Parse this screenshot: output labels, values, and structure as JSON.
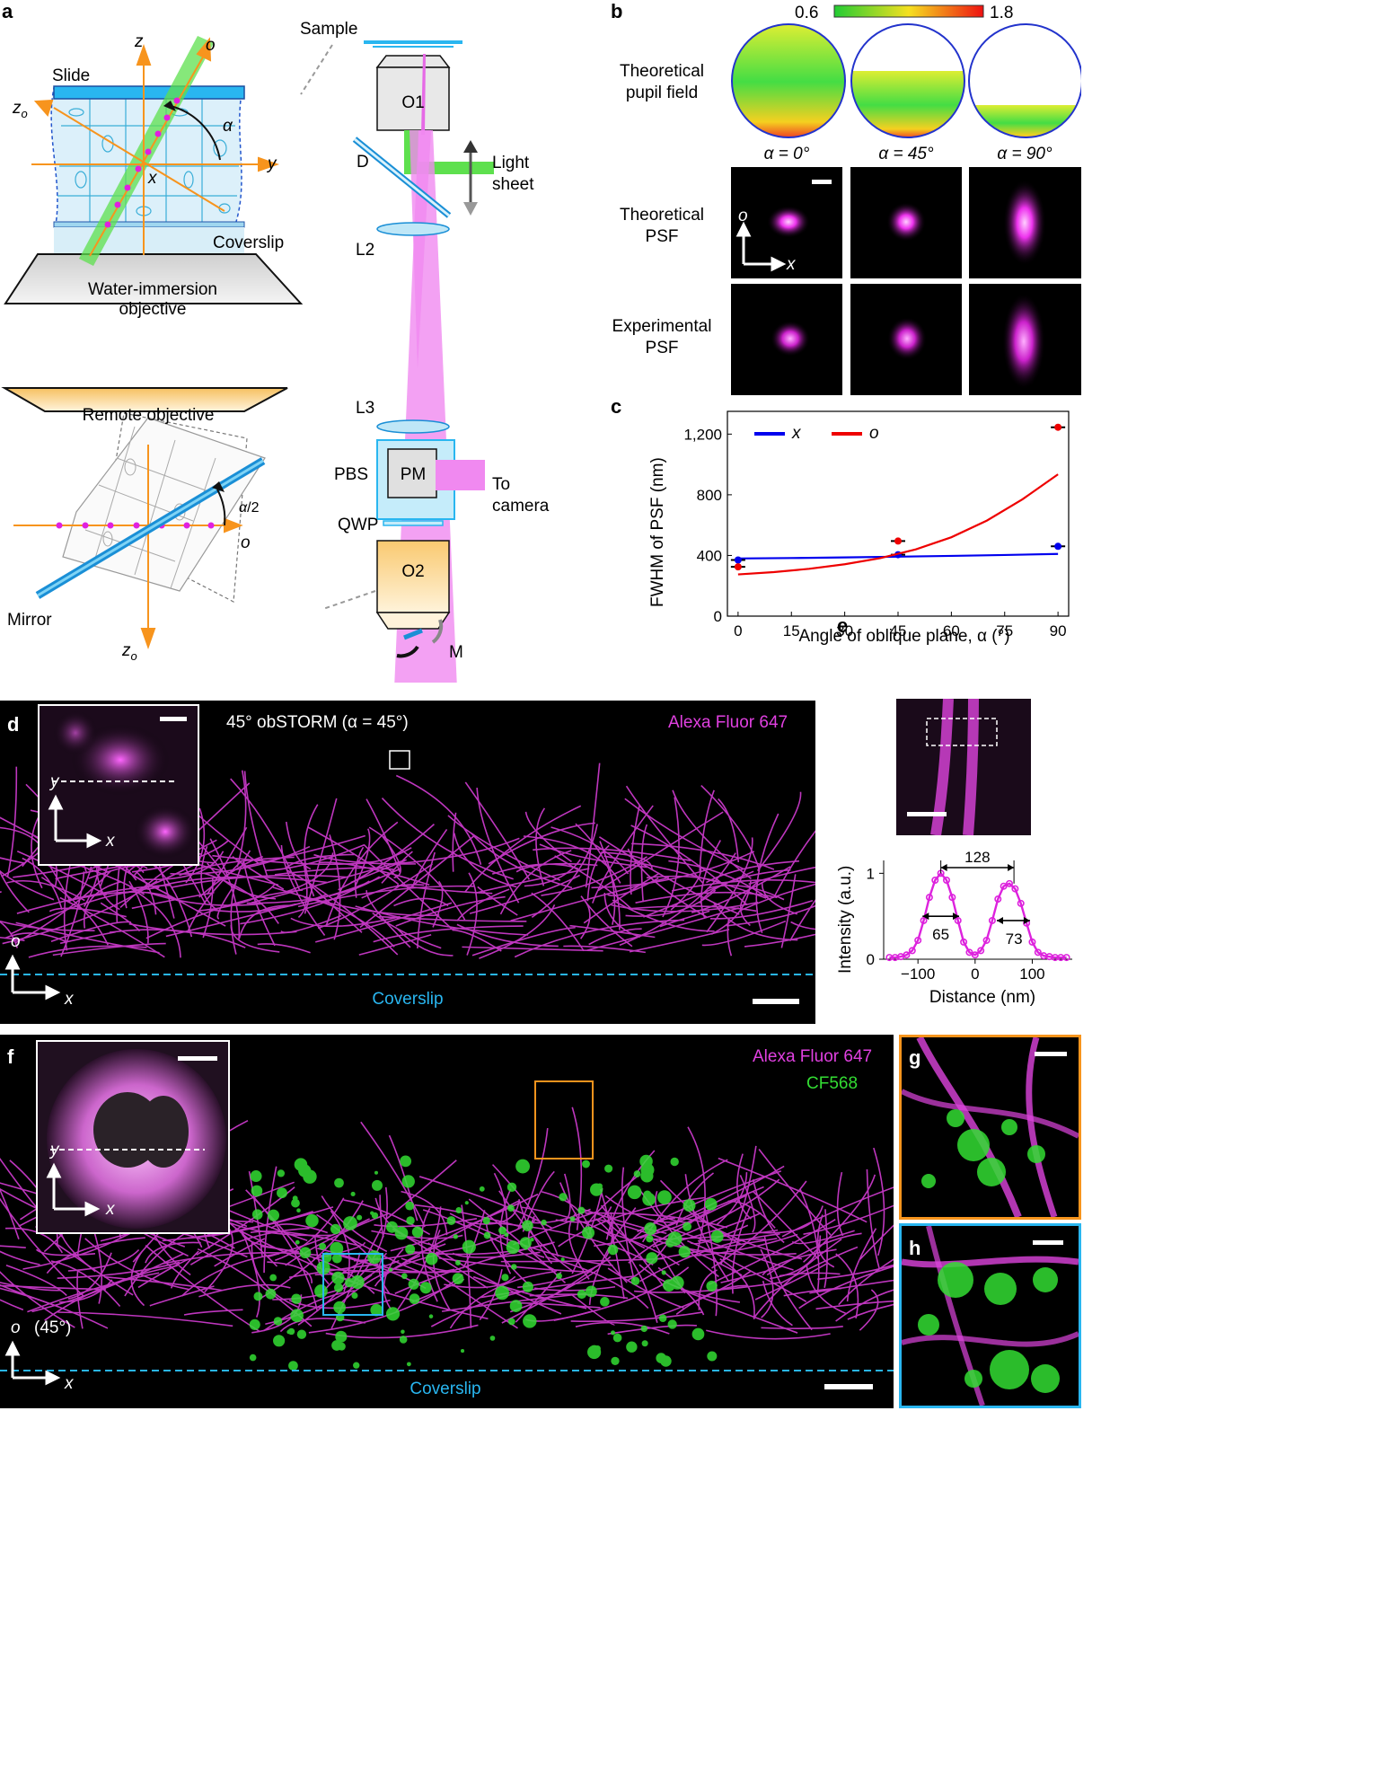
{
  "figure": {
    "panel_labels": {
      "a": "a",
      "b": "b",
      "c": "c",
      "d": "d",
      "e": "e",
      "f": "f",
      "g": "g",
      "h": "h"
    }
  },
  "panel_a": {
    "axis_z": "z",
    "axis_o": "o",
    "axis_y": "y",
    "axis_x": "x",
    "axis_zo_main": "z",
    "axis_zo_sub": "o",
    "alpha": "α",
    "slide": "Slide",
    "coverslip": "Coverslip",
    "objective_line1": "Water-immersion",
    "objective_line2": "objective",
    "remote_objective": "Remote objective",
    "mirror": "Mirror",
    "half_alpha_num": "α",
    "half_alpha_den": "/2",
    "axis_o_lower": "o",
    "axis_zo_lower_main": "z",
    "axis_zo_lower_sub": "o",
    "sample": "Sample",
    "O1": "O1",
    "D": "D",
    "light_sheet_1": "Light",
    "light_sheet_2": "sheet",
    "L2": "L2",
    "L3": "L3",
    "PBS": "PBS",
    "PM": "PM",
    "to_camera_1": "To",
    "to_camera_2": "camera",
    "QWP": "QWP",
    "O2": "O2",
    "M": "M"
  },
  "panel_b": {
    "colorbar_min": "0.6",
    "colorbar_max": "1.8",
    "row_labels": [
      [
        "Theoretical",
        "pupil field"
      ],
      [
        "Theoretical",
        "PSF"
      ],
      [
        "Experimental",
        "PSF"
      ]
    ],
    "angles": [
      "α = 0°",
      "α = 45°",
      "α = 90°"
    ],
    "axis_o": "o",
    "axis_x": "x"
  },
  "panel_c": {
    "chart_data": {
      "type": "line",
      "xlabel": "Angle of oblique plane, α (°)",
      "ylabel": "FWHM of PSF (nm)",
      "xlim": [
        -3,
        93
      ],
      "ylim": [
        0,
        1350
      ],
      "xticks": [
        0,
        15,
        30,
        45,
        60,
        75,
        90
      ],
      "yticks": [
        0,
        400,
        800,
        1200
      ],
      "ytick_labels": [
        "0",
        "400",
        "800",
        "1,200"
      ],
      "legend": [
        "x",
        "o"
      ],
      "series": [
        {
          "name": "x",
          "color": "#0000ee",
          "curve_x": [
            0,
            15,
            30,
            45,
            60,
            75,
            90
          ],
          "curve_y": [
            380,
            383,
            387,
            392,
            397,
            403,
            410
          ],
          "points_x": [
            0,
            45,
            90
          ],
          "points_y": [
            370,
            405,
            460
          ]
        },
        {
          "name": "o",
          "color": "#ee0000",
          "curve_x": [
            0,
            10,
            20,
            30,
            40,
            50,
            60,
            70,
            80,
            90
          ],
          "curve_y": [
            275,
            290,
            312,
            342,
            382,
            440,
            520,
            630,
            770,
            935
          ],
          "points_x": [
            0,
            45,
            90
          ],
          "points_y": [
            325,
            495,
            1245
          ]
        }
      ]
    }
  },
  "panel_d": {
    "title": "45° obSTORM (α = 45°)",
    "label_alexa": "Alexa Fluor 647",
    "coverslip": "Coverslip",
    "axis_o": "o",
    "axis_x": "x",
    "inset_y": "y",
    "inset_x": "x"
  },
  "panel_e": {
    "chart_data": {
      "type": "line",
      "xlabel": "Distance (nm)",
      "ylabel": "Intensity (a.u.)",
      "xlim": [
        -160,
        170
      ],
      "ylim": [
        0,
        1.15
      ],
      "xticks": [
        -100,
        0,
        100
      ],
      "yticks": [
        0,
        1
      ],
      "x": [
        -150,
        -140,
        -130,
        -120,
        -110,
        -100,
        -90,
        -80,
        -70,
        -60,
        -50,
        -40,
        -30,
        -20,
        -10,
        0,
        10,
        20,
        30,
        40,
        50,
        60,
        70,
        80,
        90,
        100,
        110,
        120,
        130,
        140,
        150,
        160
      ],
      "y": [
        0.02,
        0.02,
        0.03,
        0.05,
        0.1,
        0.22,
        0.45,
        0.72,
        0.92,
        1.0,
        0.92,
        0.72,
        0.45,
        0.2,
        0.08,
        0.05,
        0.1,
        0.22,
        0.45,
        0.7,
        0.85,
        0.88,
        0.82,
        0.65,
        0.42,
        0.2,
        0.08,
        0.04,
        0.03,
        0.02,
        0.02,
        0.02
      ],
      "annotations": [
        "128",
        "65",
        "73"
      ],
      "color": "#dd22dd"
    }
  },
  "panel_f": {
    "label_alexa": "Alexa Fluor 647",
    "label_cf": "CF568",
    "coverslip": "Coverslip",
    "axis_o": "o",
    "angle": "(45°)",
    "axis_x": "x",
    "inset_y": "y",
    "inset_x": "x"
  }
}
